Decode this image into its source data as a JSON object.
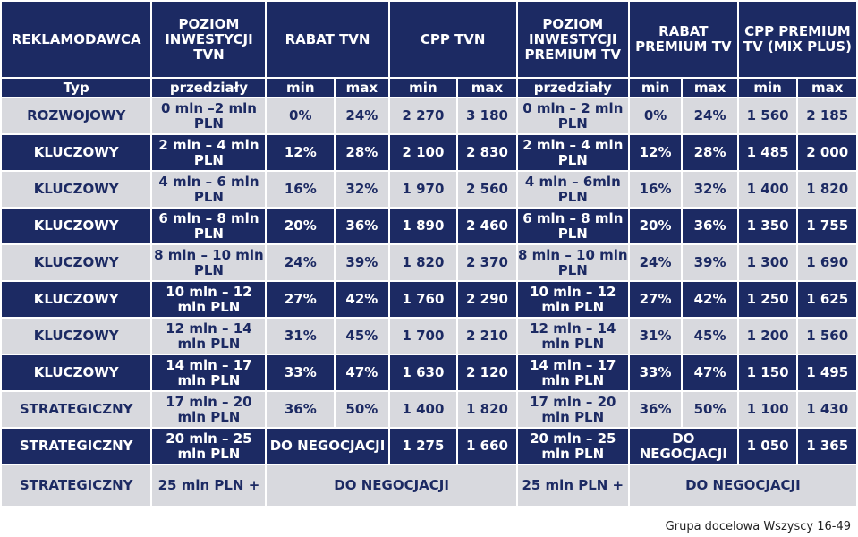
{
  "header": {
    "advertiser": "REKLAMODAWCA",
    "investment_tvn": "POZIOM INWESTYCJI TVN",
    "discount_tvn": "RABAT TVN",
    "cpp_tvn": "CPP TVN",
    "investment_premium": "POZIOM INWESTYCJI PREMIUM TV",
    "discount_premium": "RABAT PREMIUM TV",
    "cpp_premium": "CPP PREMIUM TV (MIX PLUS)"
  },
  "subheader": {
    "type": "Typ",
    "ranges": "przedziały",
    "min": "min",
    "max": "max"
  },
  "rows": [
    {
      "type": "ROZWOJOWY",
      "inv_tvn": "0 mln –2 mln PLN",
      "rab_min": "0%",
      "rab_max": "24%",
      "cpp_min": "2 270",
      "cpp_max": "3 180",
      "inv_prem": "0 mln – 2 mln PLN",
      "prab_min": "0%",
      "prab_max": "24%",
      "pcpp_min": "1 560",
      "pcpp_max": "2 185"
    },
    {
      "type": "KLUCZOWY",
      "inv_tvn": "2 mln – 4 mln PLN",
      "rab_min": "12%",
      "rab_max": "28%",
      "cpp_min": "2 100",
      "cpp_max": "2 830",
      "inv_prem": "2 mln – 4 mln PLN",
      "prab_min": "12%",
      "prab_max": "28%",
      "pcpp_min": "1 485",
      "pcpp_max": "2 000"
    },
    {
      "type": "KLUCZOWY",
      "inv_tvn": "4 mln – 6 mln PLN",
      "rab_min": "16%",
      "rab_max": "32%",
      "cpp_min": "1 970",
      "cpp_max": "2 560",
      "inv_prem": "4 mln – 6mln PLN",
      "prab_min": "16%",
      "prab_max": "32%",
      "pcpp_min": "1 400",
      "pcpp_max": "1 820"
    },
    {
      "type": "KLUCZOWY",
      "inv_tvn": "6 mln – 8 mln PLN",
      "rab_min": "20%",
      "rab_max": "36%",
      "cpp_min": "1 890",
      "cpp_max": "2 460",
      "inv_prem": "6 mln – 8 mln PLN",
      "prab_min": "20%",
      "prab_max": "36%",
      "pcpp_min": "1 350",
      "pcpp_max": "1 755"
    },
    {
      "type": "KLUCZOWY",
      "inv_tvn": "8 mln – 10 mln PLN",
      "rab_min": "24%",
      "rab_max": "39%",
      "cpp_min": "1 820",
      "cpp_max": "2 370",
      "inv_prem": "8 mln – 10 mln PLN",
      "prab_min": "24%",
      "prab_max": "39%",
      "pcpp_min": "1 300",
      "pcpp_max": "1 690"
    },
    {
      "type": "KLUCZOWY",
      "inv_tvn": "10 mln – 12 mln PLN",
      "rab_min": "27%",
      "rab_max": "42%",
      "cpp_min": "1 760",
      "cpp_max": "2 290",
      "inv_prem": "10 mln – 12 mln PLN",
      "prab_min": "27%",
      "prab_max": "42%",
      "pcpp_min": "1 250",
      "pcpp_max": "1 625"
    },
    {
      "type": "KLUCZOWY",
      "inv_tvn": "12 mln – 14 mln PLN",
      "rab_min": "31%",
      "rab_max": "45%",
      "cpp_min": "1 700",
      "cpp_max": "2 210",
      "inv_prem": "12 mln – 14 mln PLN",
      "prab_min": "31%",
      "prab_max": "45%",
      "pcpp_min": "1 200",
      "pcpp_max": "1 560"
    },
    {
      "type": "KLUCZOWY",
      "inv_tvn": "14 mln – 17 mln PLN",
      "rab_min": "33%",
      "rab_max": "47%",
      "cpp_min": "1 630",
      "cpp_max": "2 120",
      "inv_prem": "14 mln – 17 mln PLN",
      "prab_min": "33%",
      "prab_max": "47%",
      "pcpp_min": "1 150",
      "pcpp_max": "1 495"
    },
    {
      "type": "STRATEGICZNY",
      "inv_tvn": "17 mln – 20 mln PLN",
      "rab_min": "36%",
      "rab_max": "50%",
      "cpp_min": "1 400",
      "cpp_max": "1 820",
      "inv_prem": "17 mln – 20 mln PLN",
      "prab_min": "36%",
      "prab_max": "50%",
      "pcpp_min": "1 100",
      "pcpp_max": "1 430"
    }
  ],
  "row_negotiable": {
    "type": "STRATEGICZNY",
    "inv_tvn": "20 mln – 25 mln PLN",
    "rab": "DO NEGOCJACJI",
    "cpp_min": "1 275",
    "cpp_max": "1 660",
    "inv_prem": "20 mln – 25 mln PLN",
    "prab": "DO NEGOCJACJI",
    "pcpp_min": "1 050",
    "pcpp_max": "1 365"
  },
  "row_last": {
    "type": "STRATEGICZNY",
    "inv_tvn": "25 mln PLN +",
    "negotiate_tvn": "DO NEGOCJACJI",
    "inv_prem": "25 mln PLN +",
    "negotiate_prem": "DO NEGOCJACJI"
  },
  "footer": "Grupa docelowa Wszyscy 16-49",
  "colors": {
    "dark": "#1c2a63",
    "light": "#d8d9de"
  }
}
